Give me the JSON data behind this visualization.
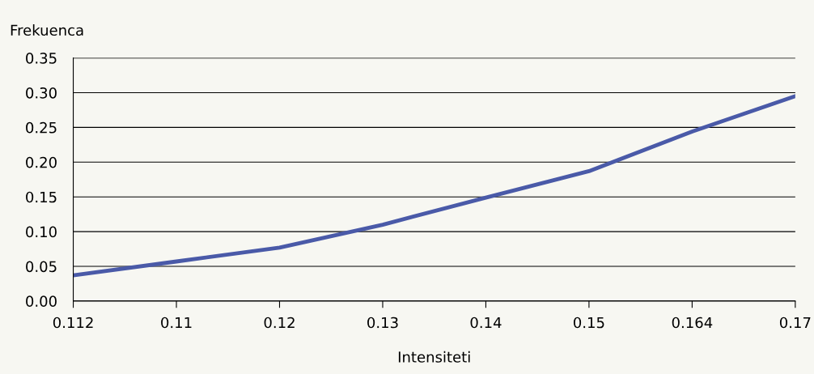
{
  "chart_data": {
    "type": "line",
    "xlabel": "Intensiteti",
    "ylabel": "Frekuenca",
    "categories": [
      "0.112",
      "0.11",
      "0.12",
      "0.13",
      "0.14",
      "0.15",
      "0.164",
      "0.17"
    ],
    "series": [
      {
        "color": "#4a5aa8",
        "values": [
          0.037,
          0.057,
          0.077,
          0.11,
          0.149,
          0.187,
          0.244,
          0.295
        ]
      }
    ],
    "ylim": [
      0,
      0.35
    ],
    "yticks": [
      {
        "value": 0,
        "label": "0.00"
      },
      {
        "value": 0.05,
        "label": "0.05"
      },
      {
        "value": 0.1,
        "label": "0.10"
      },
      {
        "value": 0.15,
        "label": "0.15"
      },
      {
        "value": 0.2,
        "label": "0.20"
      },
      {
        "value": 0.25,
        "label": "0.25"
      },
      {
        "value": 0.3,
        "label": "0.30"
      },
      {
        "value": 0.35,
        "label": "0.35"
      }
    ],
    "grid": "y",
    "legend": false,
    "marker": "none",
    "line_style": "solid"
  }
}
